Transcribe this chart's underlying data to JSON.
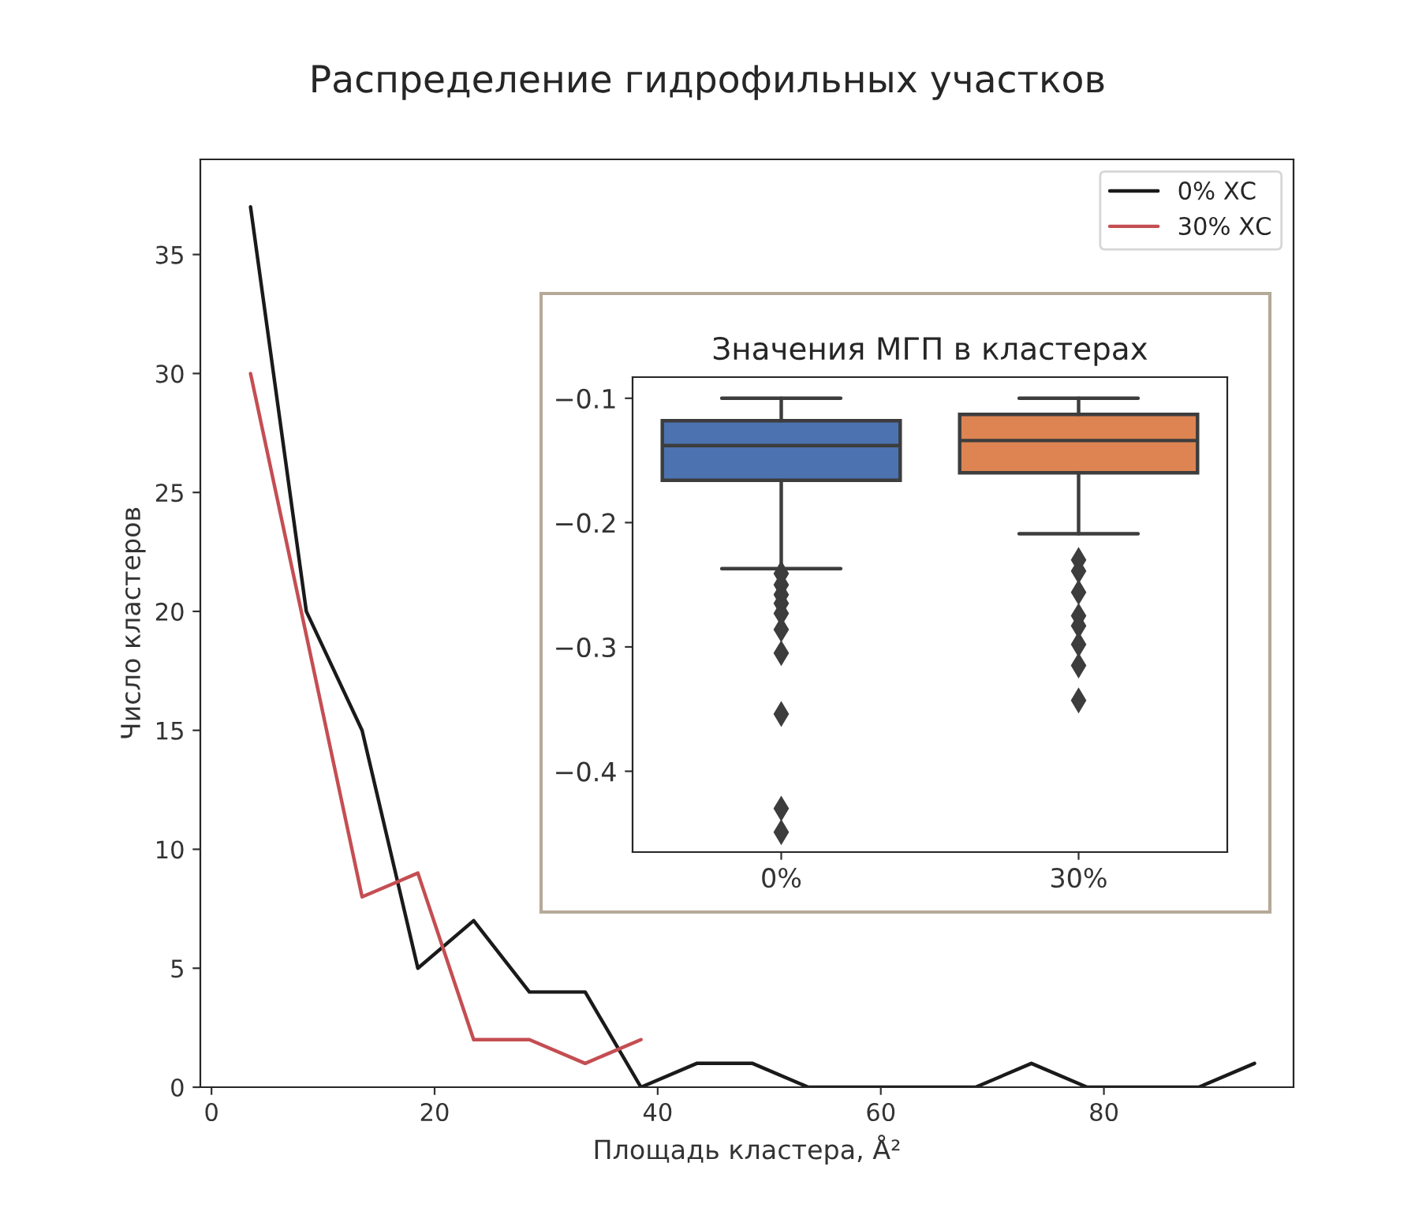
{
  "chart_data": [
    {
      "type": "line",
      "title": "Распределение гидрофильных участков",
      "xlabel": "Площадь кластера, Å²",
      "ylabel": "Число кластеров",
      "xlim": [
        -1,
        97
      ],
      "xticks": [
        0,
        20,
        40,
        60,
        80
      ],
      "ylim": [
        0,
        39
      ],
      "yticks": [
        0,
        5,
        10,
        15,
        20,
        25,
        30,
        35
      ],
      "grid": false,
      "legend": "top right",
      "series": [
        {
          "name": "0% ХС",
          "color": "#1a1a1a",
          "x": [
            3.5,
            8.5,
            13.5,
            18.5,
            23.5,
            28.5,
            33.5,
            38.5,
            43.5,
            48.5,
            53.5,
            58.5,
            63.5,
            68.5,
            73.5,
            78.5,
            83.5,
            88.5,
            93.5
          ],
          "values": [
            37,
            20,
            15,
            5,
            7,
            4,
            4,
            0,
            1,
            1,
            0,
            0,
            0,
            0,
            1,
            0,
            0,
            0,
            1
          ]
        },
        {
          "name": "30% ХС",
          "color": "#c44e52",
          "x": [
            3.5,
            8.5,
            13.5,
            18.5,
            23.5,
            28.5,
            33.5,
            38.5
          ],
          "values": [
            30,
            19,
            8,
            9,
            2,
            2,
            1,
            2
          ]
        }
      ]
    },
    {
      "type": "box",
      "title": "Значения МГП в кластерах",
      "categories": [
        "0%",
        "30%"
      ],
      "colors": [
        "#4c72b0",
        "#dd8452"
      ],
      "ylim": [
        -0.465,
        -0.083
      ],
      "yticks": [
        {
          "value": -0.1,
          "label": "−0.1"
        },
        {
          "value": -0.2,
          "label": "−0.2"
        },
        {
          "value": -0.3,
          "label": "−0.3"
        },
        {
          "value": -0.4,
          "label": "−0.4"
        }
      ],
      "grid": false,
      "boxes": [
        {
          "low": -0.237,
          "q1": -0.166,
          "median": -0.138,
          "q3": -0.118,
          "high": -0.1,
          "outliers": [
            -0.241,
            -0.25,
            -0.258,
            -0.265,
            -0.273,
            -0.286,
            -0.305,
            -0.354,
            -0.43,
            -0.449
          ]
        },
        {
          "low": -0.209,
          "q1": -0.16,
          "median": -0.134,
          "q3": -0.113,
          "high": -0.1,
          "outliers": [
            -0.23,
            -0.239,
            -0.256,
            -0.275,
            -0.283,
            -0.298,
            -0.315,
            -0.343
          ]
        }
      ]
    }
  ]
}
